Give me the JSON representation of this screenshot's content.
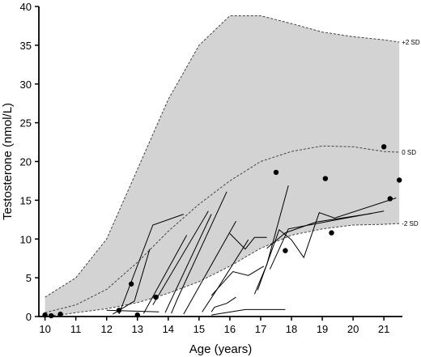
{
  "chart_data": {
    "type": "line",
    "xlabel": "Age  (years)",
    "ylabel": "Testosterone (nmol/L)",
    "xlim": [
      9.8,
      21.6
    ],
    "ylim": [
      0,
      40
    ],
    "x_ticks": [
      10,
      11,
      12,
      13,
      14,
      15,
      16,
      17,
      18,
      19,
      20,
      21
    ],
    "y_ticks": [
      0,
      5,
      10,
      15,
      20,
      25,
      30,
      35,
      40
    ],
    "grid": false,
    "colors": {
      "band": "#d3d3d3",
      "lines": "#000000",
      "ref": "#444444"
    },
    "reference_curves": [
      {
        "name": "+2 SD",
        "x": [
          10,
          11,
          12,
          13,
          14,
          15,
          16,
          17,
          18,
          19,
          20,
          21,
          21.5
        ],
        "y": [
          2.5,
          5,
          10,
          19,
          28,
          35,
          38.8,
          38.8,
          37.8,
          36.7,
          36.1,
          35.7,
          35.4
        ]
      },
      {
        "name": "0 SD",
        "x": [
          10,
          11,
          12,
          13,
          14,
          15,
          16,
          17,
          18,
          19,
          20,
          21,
          21.5
        ],
        "y": [
          0.5,
          1.5,
          3.5,
          7,
          11,
          14.5,
          17.5,
          20,
          21.3,
          22,
          21.9,
          21.3,
          21.2
        ]
      },
      {
        "name": "-2 SD",
        "x": [
          10,
          10.5,
          11,
          12,
          13,
          14,
          15,
          16,
          17,
          18,
          19,
          20,
          21,
          21.5
        ],
        "y": [
          0.1,
          0.2,
          0.5,
          1,
          1.8,
          3,
          4.5,
          6.5,
          8.8,
          10.5,
          11.3,
          11.8,
          11.9,
          12
        ]
      }
    ],
    "series": [
      {
        "x": [
          14.5,
          13.5,
          12.4
        ],
        "y": [
          13.2,
          11.8,
          0.3
        ]
      },
      {
        "x": [
          13.4,
          12.9,
          12.2
        ],
        "y": [
          8.7,
          2.0,
          0.3
        ]
      },
      {
        "x": [
          13.7,
          12.0
        ],
        "y": [
          0.6,
          0.8
        ]
      },
      {
        "x": [
          14.6,
          13.2
        ],
        "y": [
          10.5,
          0.4
        ]
      },
      {
        "x": [
          15.3,
          13.5
        ],
        "y": [
          13.6,
          1.5
        ]
      },
      {
        "x": [
          15.4,
          13.9
        ],
        "y": [
          13.2,
          0.5
        ]
      },
      {
        "x": [
          15.9,
          14.3,
          14.1
        ],
        "y": [
          16.1,
          2.3,
          0.4
        ]
      },
      {
        "x": [
          16.2,
          14.5
        ],
        "y": [
          12.3,
          0.3
        ]
      },
      {
        "x": [
          16.6,
          15.6,
          15.1
        ],
        "y": [
          9.9,
          3.6,
          0.6
        ]
      },
      {
        "x": [
          15.4,
          15.5,
          15.9,
          16.2
        ],
        "y": [
          0.6,
          1.2,
          1.7,
          2.5
        ]
      },
      {
        "x": [
          15.4,
          16.5,
          17.8
        ],
        "y": [
          0.2,
          0.9,
          0.9
        ]
      },
      {
        "x": [
          15.4,
          16.1,
          16.6,
          17.1
        ],
        "y": [
          2.7,
          5.8,
          5.3,
          6.5
        ]
      },
      {
        "x": [
          16.0,
          16.5,
          16.8,
          17.2
        ],
        "y": [
          10.7,
          8.7,
          10.2,
          10.2
        ]
      },
      {
        "x": [
          16.8,
          17.2,
          17.9
        ],
        "y": [
          2.9,
          6.7,
          16.9
        ]
      },
      {
        "x": [
          16.9,
          17.6,
          18.0,
          18.4,
          18.9,
          19.4,
          21.4
        ],
        "y": [
          3.4,
          11.2,
          9.9,
          7.6,
          13.4,
          12.7,
          15.3
        ]
      },
      {
        "x": [
          17.2,
          17.8,
          18.8,
          20.6
        ],
        "y": [
          8.8,
          10.8,
          12.2,
          13.3
        ]
      },
      {
        "x": [
          17.3,
          17.9,
          19.5,
          21.0
        ],
        "y": [
          6.1,
          11.3,
          12.5,
          13.6
        ]
      }
    ],
    "points": [
      {
        "x": 10.0,
        "y": 0.2
      },
      {
        "x": 10.2,
        "y": 0.1
      },
      {
        "x": 10.5,
        "y": 0.3
      },
      {
        "x": 12.4,
        "y": 0.8
      },
      {
        "x": 12.8,
        "y": 4.2
      },
      {
        "x": 13.0,
        "y": 0.2
      },
      {
        "x": 13.6,
        "y": 2.5
      },
      {
        "x": 17.5,
        "y": 18.6
      },
      {
        "x": 17.8,
        "y": 8.5
      },
      {
        "x": 19.1,
        "y": 17.8
      },
      {
        "x": 19.3,
        "y": 10.8
      },
      {
        "x": 21.0,
        "y": 21.9
      },
      {
        "x": 21.2,
        "y": 15.2
      },
      {
        "x": 21.5,
        "y": 17.6
      }
    ]
  }
}
